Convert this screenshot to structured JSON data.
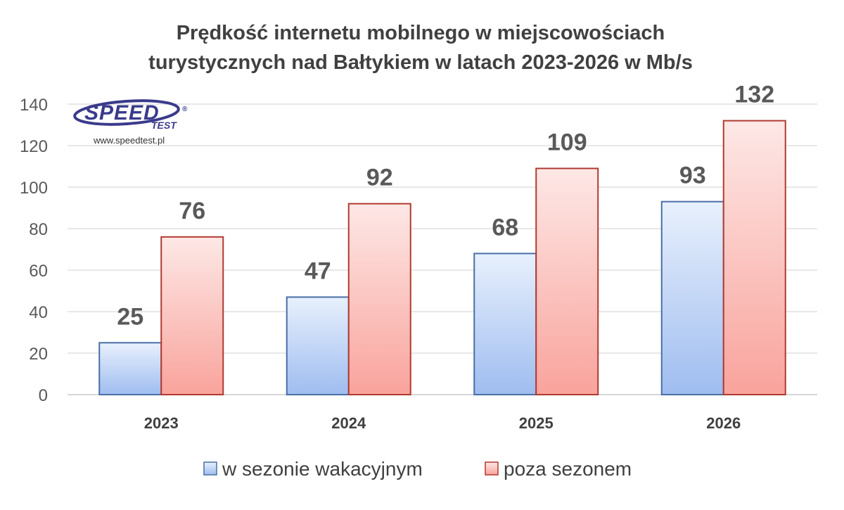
{
  "chart_data": {
    "type": "bar",
    "title_lines": [
      "Prędkość internetu mobilnego w miejscowościach",
      "turystycznych nad Bałtykiem w latach 2023-2026 w Mb/s"
    ],
    "categories": [
      "2023",
      "2024",
      "2025",
      "2026"
    ],
    "series": [
      {
        "name": "w sezonie wakacyjnym",
        "values": [
          25,
          47,
          68,
          93
        ],
        "color": "#a9c4f2",
        "border": "#4a6fa5"
      },
      {
        "name": "poza sezonem",
        "values": [
          76,
          92,
          109,
          132
        ],
        "color": "#fbb9b4",
        "border": "#b03a30"
      }
    ],
    "ylim": [
      0,
      140
    ],
    "yticks": [
      0,
      20,
      40,
      60,
      80,
      100,
      120,
      140
    ],
    "grid": true,
    "legend_position": "bottom",
    "data_labels": true
  },
  "logo": {
    "main": "SPEED",
    "sub": "TEST",
    "registered": "®",
    "url": "www.speedtest.pl"
  }
}
